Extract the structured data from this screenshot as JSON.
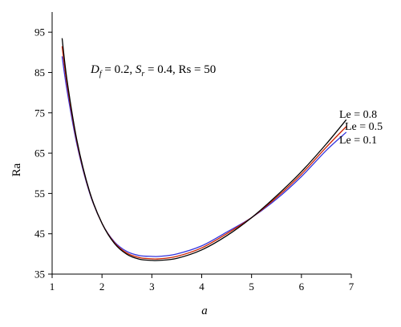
{
  "chart_data": {
    "type": "line",
    "title": "",
    "xlabel": "a",
    "ylabel": "Ra",
    "xlim": [
      1,
      7
    ],
    "ylim": [
      35,
      100
    ],
    "xticks": [
      "1",
      "2",
      "3",
      "4",
      "5",
      "6",
      "7"
    ],
    "yticks": [
      "35",
      "45",
      "55",
      "65",
      "75",
      "85",
      "95"
    ],
    "grid": false,
    "annotation": {
      "d_sym": "D",
      "d_sub": "f",
      "d_rest": " = 0.2, ",
      "s_sym": "S",
      "s_sub": "r",
      "s_rest": " = 0.4, Rs = 50"
    },
    "series": [
      {
        "name": "Le = 0.8",
        "color": "#000000",
        "x": [
          1.2,
          1.3,
          1.5,
          1.75,
          2.0,
          2.25,
          2.5,
          2.75,
          3.0,
          3.15,
          3.5,
          4.0,
          4.5,
          5.0,
          5.5,
          6.0,
          6.5,
          6.9
        ],
        "y": [
          93.5,
          83.0,
          68.0,
          55.5,
          47.6,
          42.6,
          39.9,
          38.7,
          38.4,
          38.4,
          38.9,
          41.0,
          44.5,
          49.0,
          54.4,
          60.4,
          67.3,
          73.3
        ]
      },
      {
        "name": "Le = 0.5",
        "color": "#cc2200",
        "x": [
          1.2,
          1.3,
          1.5,
          1.75,
          2.0,
          2.25,
          2.5,
          2.75,
          3.0,
          3.15,
          3.5,
          4.0,
          4.5,
          5.0,
          5.5,
          6.0,
          6.5,
          6.9
        ],
        "y": [
          91.5,
          82.0,
          67.6,
          55.4,
          47.6,
          42.8,
          40.2,
          39.1,
          38.8,
          38.8,
          39.4,
          41.5,
          45.0,
          49.0,
          54.0,
          59.8,
          66.5,
          71.6
        ]
      },
      {
        "name": "Le = 0.1",
        "color": "#3333dd",
        "x": [
          1.2,
          1.3,
          1.5,
          1.75,
          2.0,
          2.25,
          2.5,
          2.75,
          3.0,
          3.15,
          3.5,
          4.0,
          4.5,
          5.0,
          5.5,
          6.0,
          6.5,
          6.9
        ],
        "y": [
          89.0,
          80.5,
          67.0,
          55.2,
          47.6,
          43.0,
          40.6,
          39.6,
          39.4,
          39.4,
          40.0,
          42.0,
          45.4,
          49.0,
          53.6,
          59.2,
          65.7,
          70.2
        ]
      }
    ]
  }
}
